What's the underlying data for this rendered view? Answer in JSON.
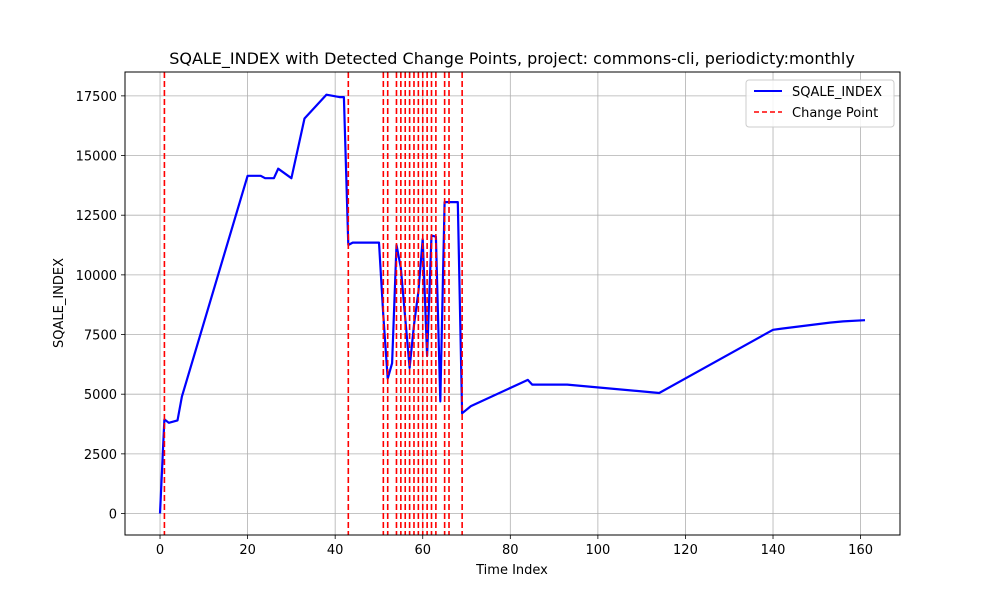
{
  "chart_data": {
    "type": "line",
    "title": "SQALE_INDEX with Detected Change Points, project: commons-cli, periodicty:monthly",
    "xlabel": "Time Index",
    "ylabel": "SQALE_INDEX",
    "xlim": [
      -8,
      169
    ],
    "ylim": [
      -900,
      18500
    ],
    "xticks": [
      0,
      20,
      40,
      60,
      80,
      100,
      120,
      140,
      160
    ],
    "yticks": [
      0,
      2500,
      5000,
      7500,
      10000,
      12500,
      15000,
      17500
    ],
    "grid": true,
    "legend_position": "top-right",
    "series": [
      {
        "name": "SQALE_INDEX",
        "color": "#0000ff",
        "style": "solid",
        "x": [
          0,
          1,
          2,
          4,
          5,
          20,
          22,
          23,
          24,
          26,
          27,
          30,
          33,
          38,
          41,
          42,
          43,
          44,
          50,
          51,
          52,
          53,
          54,
          55,
          57,
          58,
          59,
          60,
          61,
          62,
          63,
          64,
          65,
          66,
          68,
          69,
          71,
          84,
          85,
          93,
          114,
          140,
          142,
          153,
          156,
          161
        ],
        "y": [
          0,
          3950,
          3800,
          3900,
          4900,
          14150,
          14150,
          14150,
          14050,
          14050,
          14450,
          14050,
          16550,
          17550,
          17450,
          17450,
          11250,
          11350,
          11350,
          8300,
          5650,
          6300,
          11250,
          10300,
          6100,
          7900,
          9300,
          11500,
          6600,
          11650,
          11600,
          4700,
          13050,
          13050,
          13050,
          4200,
          4500,
          5600,
          5400,
          5400,
          5050,
          7700,
          7750,
          8000,
          8050,
          8100
        ]
      }
    ],
    "change_points": {
      "name": "Change Point",
      "color": "#ff0000",
      "style": "dashed",
      "x": [
        1,
        43,
        51,
        52,
        54,
        55,
        56,
        57,
        58,
        59,
        60,
        61,
        62,
        63,
        65,
        66,
        69
      ]
    }
  }
}
